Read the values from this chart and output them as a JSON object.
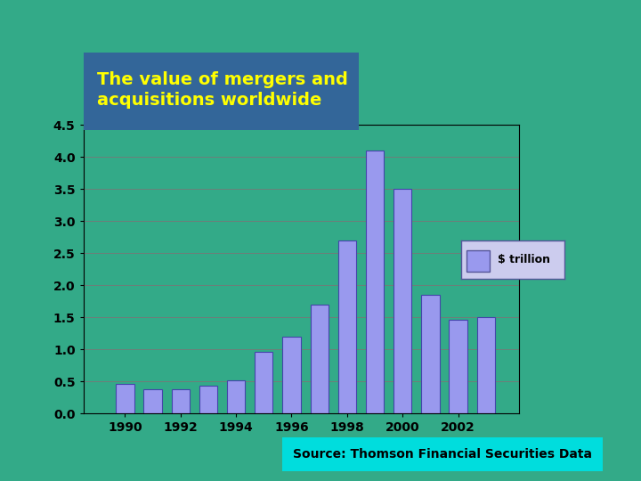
{
  "title": "The value of mergers and\nacquisitions worldwide",
  "source_text": "Source: Thomson Financial Securities Data",
  "legend_label": "$ trillion",
  "years": [
    1990,
    1991,
    1992,
    1993,
    1994,
    1995,
    1996,
    1997,
    1998,
    1999,
    2000,
    2001,
    2002,
    2003
  ],
  "values": [
    0.46,
    0.38,
    0.38,
    0.44,
    0.52,
    0.96,
    1.2,
    1.7,
    2.7,
    4.1,
    3.5,
    1.85,
    1.47,
    1.5
  ],
  "bar_color": "#9999ee",
  "bar_edge_color": "#4444aa",
  "background_color": "#33aa88",
  "plot_bg_color": "#33aa88",
  "title_bg_color": "#336699",
  "title_text_color": "#ffff00",
  "source_bg_color": "#00dddd",
  "ylim": [
    0,
    4.5
  ],
  "yticks": [
    0,
    0.5,
    1.0,
    1.5,
    2.0,
    2.5,
    3.0,
    3.5,
    4.0,
    4.5
  ],
  "xtick_labels": [
    "1990",
    "1992",
    "1994",
    "1996",
    "1998",
    "2000",
    "2002"
  ],
  "xtick_positions": [
    1990,
    1992,
    1994,
    1996,
    1998,
    2000,
    2002
  ],
  "grid_color": "#777777",
  "legend_bg_color": "#ccccee",
  "legend_edge_color": "#555599"
}
